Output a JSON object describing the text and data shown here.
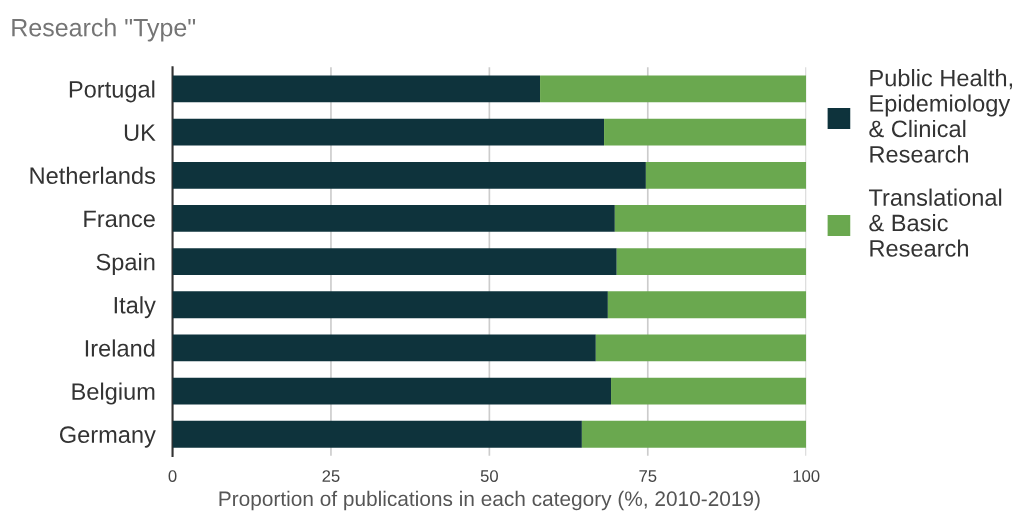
{
  "chart_data": {
    "type": "bar",
    "orientation": "horizontal",
    "stacked": true,
    "title": "Research \"Type\"",
    "xlabel": "Proportion of publications in each category (%, 2010-2019)",
    "categories": [
      "Portugal",
      "UK",
      "Netherlands",
      "France",
      "Spain",
      "Italy",
      "Ireland",
      "Belgium",
      "Germany"
    ],
    "series": [
      {
        "name": "Public Health,\nEpidemiology\n& Clinical\nResearch",
        "color": "#0e333c",
        "values": [
          58.0,
          68.1,
          74.7,
          69.8,
          70.1,
          68.7,
          66.8,
          69.2,
          64.6
        ]
      },
      {
        "name": "Translational\n& Basic\nResearch",
        "color": "#6aa84f",
        "values": [
          42.0,
          31.9,
          25.3,
          30.2,
          29.9,
          31.3,
          33.2,
          30.8,
          35.4
        ]
      }
    ],
    "xlim": [
      0,
      100
    ],
    "xticks": [
      0,
      25,
      50,
      75,
      100
    ],
    "grid": "x",
    "legend": "right"
  }
}
